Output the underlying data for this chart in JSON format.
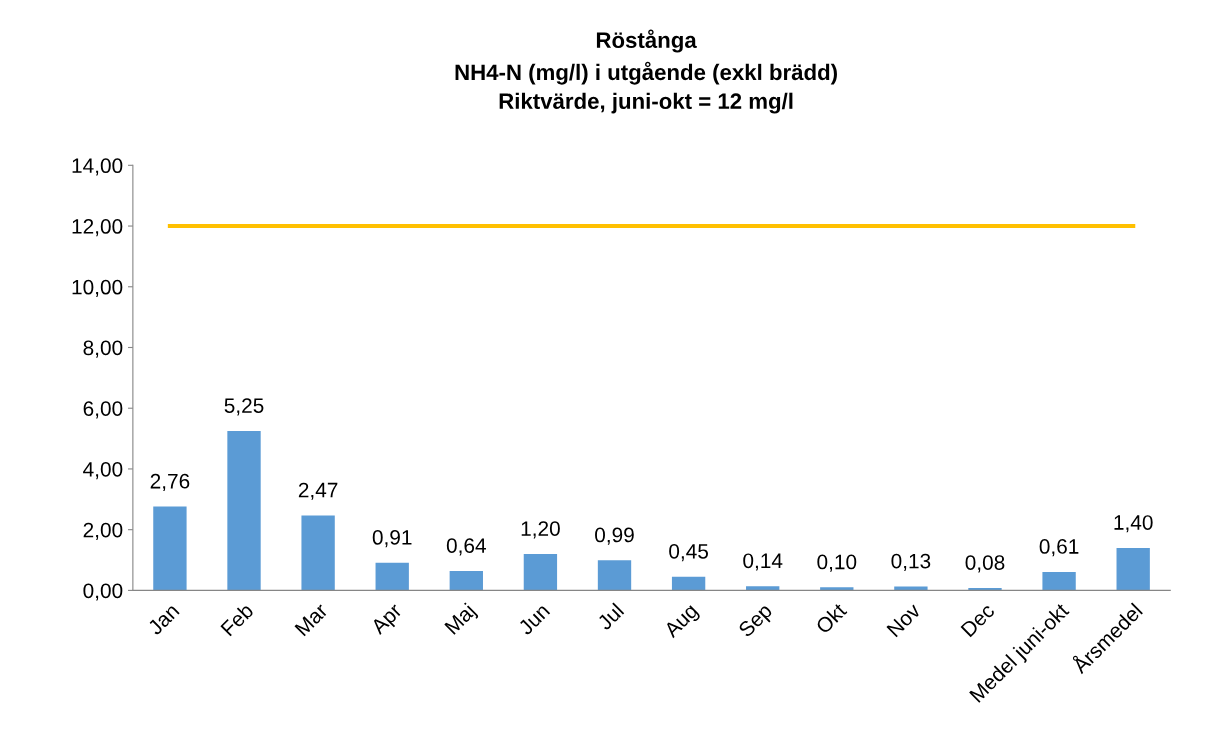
{
  "chart_data": {
    "type": "bar",
    "title": "Röstånga\nNH4-N (mg/l) i utgående (exkl brädd)\nRiktvärde, juni-okt = 12 mg/l",
    "categories": [
      "Jan",
      "Feb",
      "Mar",
      "Apr",
      "Maj",
      "Jun",
      "Jul",
      "Aug",
      "Sep",
      "Okt",
      "Nov",
      "Dec",
      "Medel juni-okt",
      "Årsmedel"
    ],
    "series": [
      {
        "color": "#5b9bd5",
        "values": [
          2.76,
          5.25,
          2.47,
          0.91,
          0.64,
          1.2,
          0.99,
          0.45,
          0.14,
          0.1,
          0.13,
          0.08,
          0.61,
          1.4
        ],
        "value_labels": [
          "2,76",
          "5,25",
          "2,47",
          "0,91",
          "0,64",
          "1,20",
          "0,99",
          "0,45",
          "0,14",
          "0,10",
          "0,13",
          "0,08",
          "0,61",
          "1,40"
        ]
      },
      {
        "type": "line",
        "color": "#ffc000",
        "values": [
          12,
          12,
          12,
          12,
          12,
          12,
          12,
          12,
          12,
          12,
          12,
          12,
          12,
          12
        ]
      }
    ],
    "ylim": [
      0,
      14
    ],
    "yticks": [
      {
        "value": 0,
        "label": "0,00"
      },
      {
        "value": 2,
        "label": "2,00"
      },
      {
        "value": 4,
        "label": "4,00"
      },
      {
        "value": 6,
        "label": "6,00"
      },
      {
        "value": 8,
        "label": "8,00"
      },
      {
        "value": 10,
        "label": "10,00"
      },
      {
        "value": 12,
        "label": "12,00"
      },
      {
        "value": 14,
        "label": "14,00"
      }
    ],
    "grid": false,
    "legend": false
  }
}
